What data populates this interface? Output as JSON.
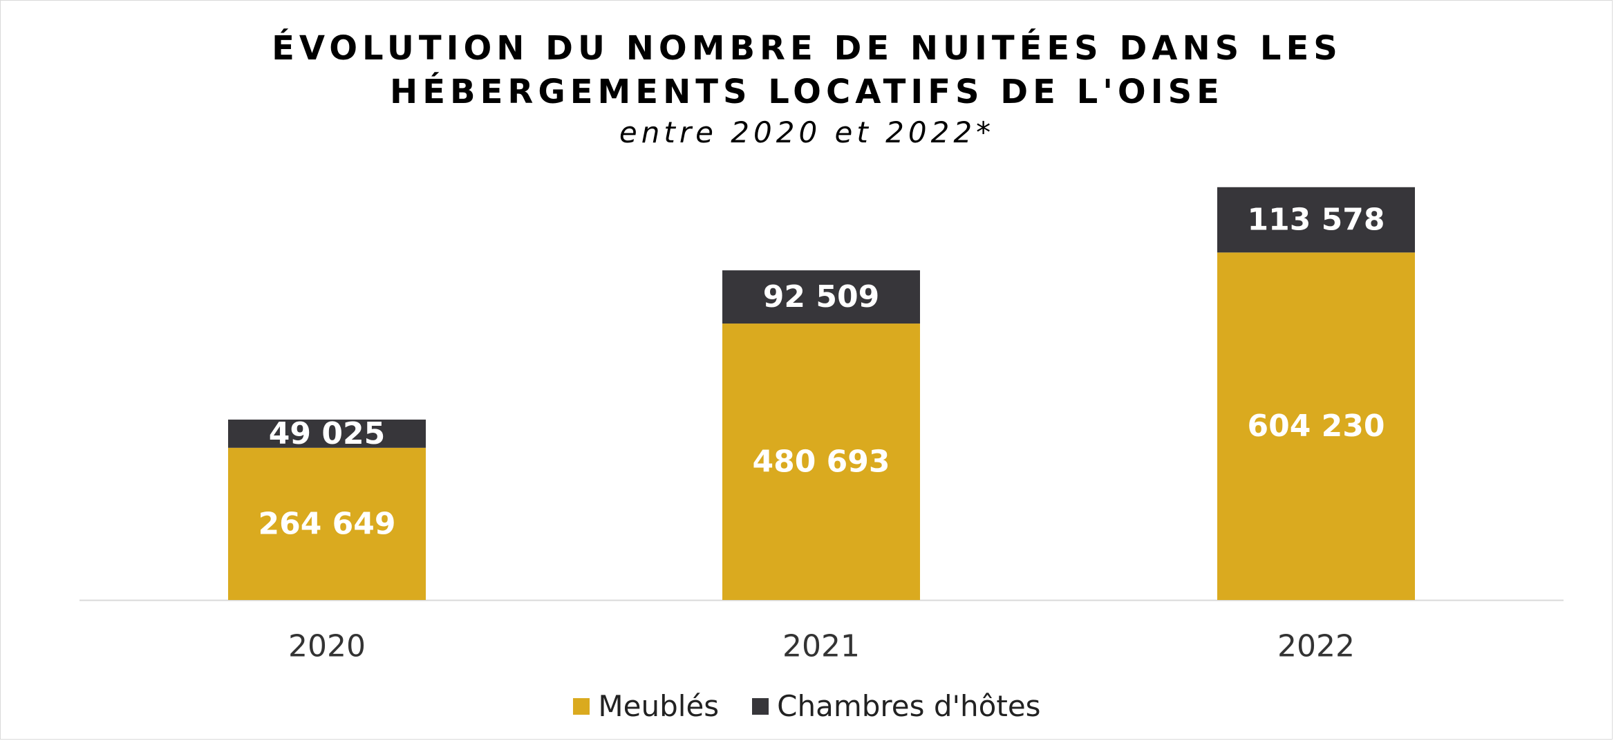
{
  "chart_data": {
    "type": "bar",
    "stacked": true,
    "title": "ÉVOLUTION DU NOMBRE DE NUITÉES DANS LES HÉBERGEMENTS LOCATIFS DE L'OISE",
    "title_lines": [
      "ÉVOLUTION DU NOMBRE DE NUITÉES DANS LES",
      "HÉBERGEMENTS LOCATIFS DE L'OISE"
    ],
    "subtitle": "entre 2020 et 2022*",
    "categories": [
      "2020",
      "2021",
      "2022"
    ],
    "series": [
      {
        "name": "Meublés",
        "color": "#DAAA1F",
        "values": [
          264649,
          480693,
          604230
        ],
        "labels": [
          "264 649",
          "480 693",
          "604 230"
        ]
      },
      {
        "name": "Chambres d'hôtes",
        "color": "#37363A",
        "values": [
          49025,
          92509,
          113578
        ],
        "labels": [
          "49 025",
          "92 509",
          "113 578"
        ]
      }
    ],
    "ylim": [
      0,
      720000
    ],
    "grid": false,
    "legend_position": "bottom"
  }
}
